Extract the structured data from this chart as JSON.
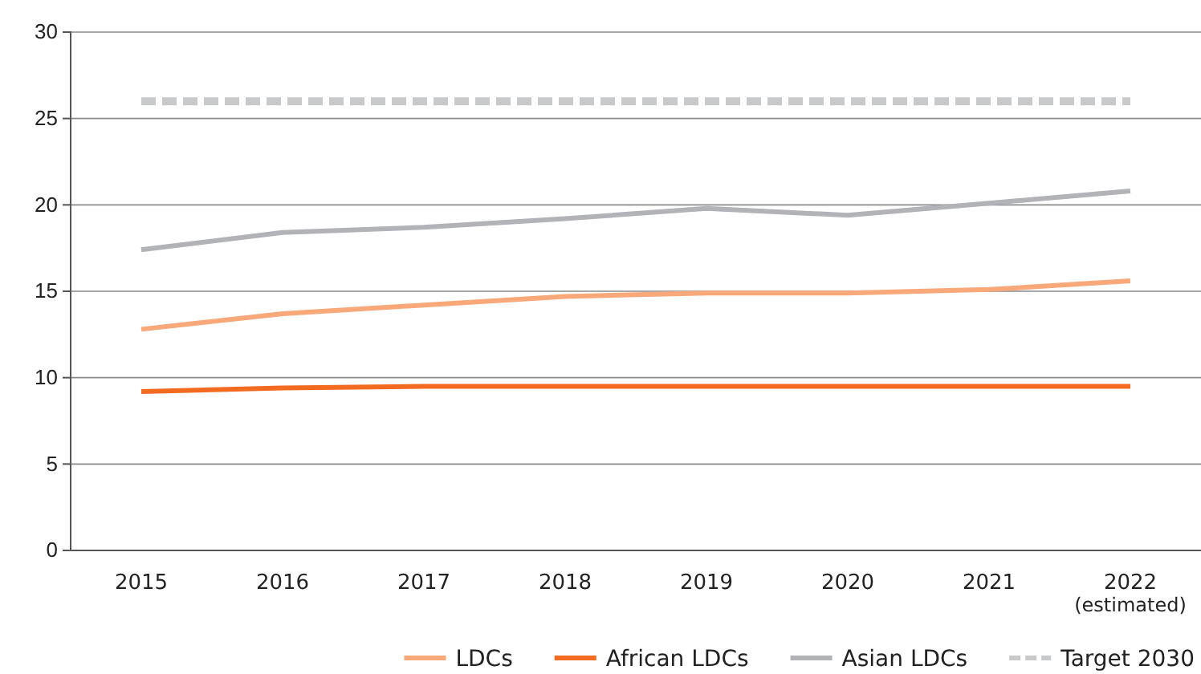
{
  "chart_data": {
    "type": "line",
    "categories": [
      "2015",
      "2016",
      "2017",
      "2018",
      "2019",
      "2020",
      "2021",
      "2022 (estimated)"
    ],
    "series": [
      {
        "name": "LDCs",
        "color": "#f9a87a",
        "values": [
          12.8,
          13.7,
          14.2,
          14.7,
          14.9,
          14.9,
          15.1,
          15.6
        ]
      },
      {
        "name": "African LDCs",
        "color": "#f26b21",
        "values": [
          9.2,
          9.4,
          9.5,
          9.5,
          9.5,
          9.5,
          9.5,
          9.5
        ]
      },
      {
        "name": "Asian LDCs",
        "color": "#b1b3b6",
        "values": [
          17.4,
          18.4,
          18.7,
          19.2,
          19.8,
          19.4,
          20.1,
          20.8
        ]
      },
      {
        "name": "Target 2030",
        "color": "#c8c9cb",
        "line_style": "dashed",
        "values": [
          26,
          26,
          26,
          26,
          26,
          26,
          26,
          26
        ]
      }
    ],
    "ylim": [
      0,
      30
    ],
    "yticks": [
      0,
      5,
      10,
      15,
      20,
      25,
      30
    ],
    "grid": "y",
    "legend": "bottom",
    "marker": "none",
    "line_style": "solid"
  }
}
